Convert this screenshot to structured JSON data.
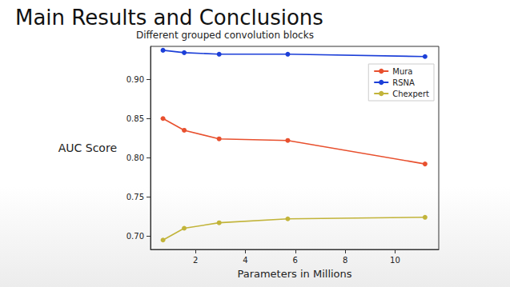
{
  "chart_data": {
    "type": "line",
    "title": "Main Results and Conclusions",
    "subtitle": "Different grouped convolution blocks",
    "x_label": "Parameters in Millions",
    "y_label": "AUC Score",
    "x": [
      0.7,
      1.55,
      2.95,
      5.7,
      11.2
    ],
    "series": [
      {
        "name": "Mura",
        "color": "#e8502e",
        "marker": "circle",
        "line_style": "solid",
        "values": [
          0.85,
          0.835,
          0.824,
          0.822,
          0.792
        ]
      },
      {
        "name": "RSNA",
        "color": "#1c3fd8",
        "marker": "circle",
        "line_style": "solid",
        "values": [
          0.937,
          0.934,
          0.932,
          0.932,
          0.929
        ]
      },
      {
        "name": "Chexpert",
        "color": "#c2b43a",
        "marker": "circle",
        "line_style": "solid",
        "values": [
          0.695,
          0.71,
          0.717,
          0.722,
          0.724
        ]
      }
    ],
    "xlim": [
      0.2,
      11.75
    ],
    "xticks": [
      2,
      4,
      6,
      8,
      10
    ],
    "ylim": [
      0.683,
      0.942
    ],
    "yticks": [
      {
        "value": 0.7,
        "label": "0.70"
      },
      0.75,
      {
        "value": 0.8,
        "label": "0.80"
      },
      0.85,
      {
        "value": 0.9,
        "label": "0.90"
      }
    ],
    "grid": false,
    "legend": "upper right"
  }
}
